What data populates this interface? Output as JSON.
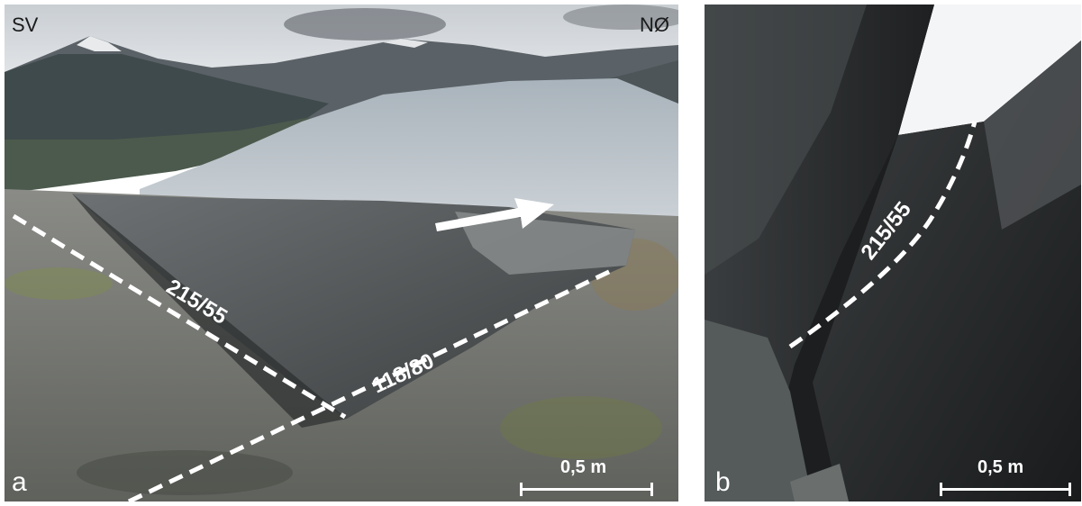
{
  "panel_a": {
    "letter": "a",
    "direction_left": "SV",
    "direction_right": "NØ",
    "orientation_1": "215/55",
    "orientation_2": "118/80",
    "scale_label": "0,5 m"
  },
  "panel_b": {
    "letter": "b",
    "orientation_1": "215/55",
    "scale_label": "0,5 m"
  }
}
